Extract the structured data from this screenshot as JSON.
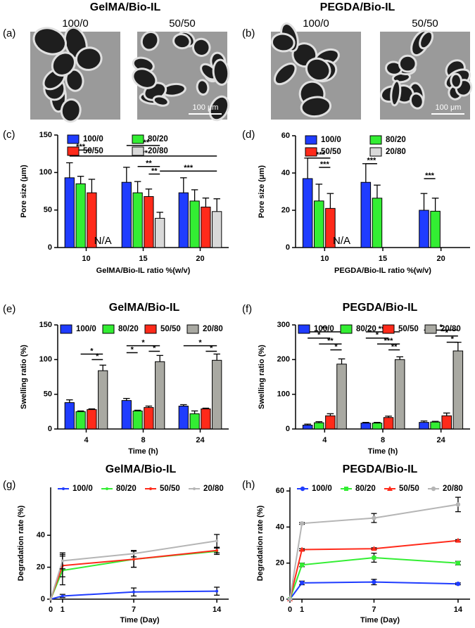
{
  "image_panels": [
    {
      "label": "(a)",
      "title": "GelMA/Bio-IL",
      "images": [
        {
          "caption": "100/0"
        },
        {
          "caption": "50/50",
          "scale_bar": "100 μm"
        }
      ]
    },
    {
      "label": "(b)",
      "title": "PEGDA/Bio-IL",
      "images": [
        {
          "caption": "100/0"
        },
        {
          "caption": "50/50",
          "scale_bar": "100 μm"
        }
      ]
    }
  ],
  "chart_data": [
    {
      "type": "bar",
      "panel_label": "(c)",
      "x_label": "GelMA/Bio-IL ratio %(w/v)",
      "y_label": "Pore size (μm)",
      "categories": [
        "10",
        "15",
        "20"
      ],
      "ylim": [
        0,
        150
      ],
      "yticks": [
        0,
        50,
        100,
        150
      ],
      "series": [
        {
          "name": "100/0",
          "color": "#1f3cff",
          "values": [
            93,
            87,
            73
          ],
          "errors": [
            20,
            20,
            20
          ]
        },
        {
          "name": "80/20",
          "color": "#33ee33",
          "values": [
            85,
            73,
            62
          ],
          "errors": [
            10,
            15,
            15
          ]
        },
        {
          "name": "50/50",
          "color": "#ff2a1a",
          "values": [
            73,
            68,
            54
          ],
          "errors": [
            18,
            10,
            12
          ]
        },
        {
          "name": "20/80",
          "color": "#d9d9d9",
          "values": [
            null,
            39,
            48
          ],
          "errors": [
            null,
            8,
            17
          ]
        }
      ],
      "na_labels": [
        {
          "text": "N/A",
          "category": 0
        }
      ],
      "annotations": [
        {
          "text": "***",
          "from": [
            0,
            0
          ],
          "to": [
            0,
            2
          ],
          "y": 130
        },
        {
          "text": "****",
          "from": [
            1,
            0
          ],
          "to": [
            1,
            3
          ],
          "y": 136
        },
        {
          "text": "***",
          "from": [
            0,
            0
          ],
          "to": [
            2,
            3
          ],
          "y": 122
        },
        {
          "text": "**",
          "from": [
            1,
            1
          ],
          "to": [
            1,
            3
          ],
          "y": 108
        },
        {
          "text": "**",
          "from": [
            1,
            2
          ],
          "to": [
            1,
            3
          ],
          "y": 98
        },
        {
          "text": "***",
          "from": [
            1,
            3
          ],
          "to": [
            2,
            3
          ],
          "y": 102
        }
      ]
    },
    {
      "type": "bar",
      "panel_label": "(d)",
      "x_label": "PEGDA/Bio-IL ratio %(w/v)",
      "y_label": "Pore size (μm)",
      "categories": [
        "10",
        "15",
        "20"
      ],
      "ylim": [
        0,
        60
      ],
      "yticks": [
        0,
        20,
        40,
        60
      ],
      "series": [
        {
          "name": "100/0",
          "color": "#1f3cff",
          "values": [
            37,
            35,
            20
          ],
          "errors": [
            11,
            10,
            9
          ]
        },
        {
          "name": "80/20",
          "color": "#33ee33",
          "values": [
            25,
            26.5,
            19.5
          ],
          "errors": [
            9,
            7,
            7
          ]
        },
        {
          "name": "50/50",
          "color": "#ff2a1a",
          "values": [
            21,
            null,
            null
          ],
          "errors": [
            8,
            null,
            null
          ]
        },
        {
          "name": "20/80",
          "color": "#d9d9d9",
          "values": [
            null,
            null,
            null
          ],
          "errors": [
            null,
            null,
            null
          ]
        }
      ],
      "na_labels": [
        {
          "text": "N/A",
          "category": 0
        }
      ],
      "annotations": [
        {
          "text": "****",
          "from": [
            0,
            0
          ],
          "to": [
            0,
            2
          ],
          "y": 48
        },
        {
          "text": "***",
          "from": [
            0,
            1
          ],
          "to": [
            0,
            2
          ],
          "y": 43
        },
        {
          "text": "***",
          "from": [
            1,
            0
          ],
          "to": [
            1,
            1
          ],
          "y": 45
        },
        {
          "text": "***",
          "from": [
            2,
            0
          ],
          "to": [
            2,
            1
          ],
          "y": 37
        }
      ]
    },
    {
      "type": "bar",
      "panel_label": "(e)",
      "title": "GelMA/Bio-IL",
      "x_label": "Time (h)",
      "y_label": "Swelling ratio (%)",
      "categories": [
        "4",
        "8",
        "24"
      ],
      "ylim": [
        0,
        150
      ],
      "yticks": [
        0,
        50,
        100,
        150
      ],
      "series": [
        {
          "name": "100/0",
          "color": "#1f3cff",
          "values": [
            38,
            41,
            33
          ],
          "errors": [
            4,
            3,
            2
          ]
        },
        {
          "name": "80/20",
          "color": "#33ee33",
          "values": [
            25,
            26,
            22
          ],
          "errors": [
            1,
            1,
            4
          ]
        },
        {
          "name": "50/50",
          "color": "#ff2a1a",
          "values": [
            28,
            31,
            29
          ],
          "errors": [
            1,
            2,
            1
          ]
        },
        {
          "name": "20/80",
          "color": "#a9a9a2",
          "values": [
            84,
            97,
            99
          ],
          "errors": [
            8,
            9,
            9
          ]
        }
      ],
      "annotations": [
        {
          "text": "*",
          "from": [
            0,
            1
          ],
          "to": [
            0,
            3
          ],
          "y": 108
        },
        {
          "text": "*",
          "from": [
            0,
            2
          ],
          "to": [
            0,
            3
          ],
          "y": 100
        },
        {
          "text": "*",
          "from": [
            1,
            0
          ],
          "to": [
            1,
            3
          ],
          "y": 120
        },
        {
          "text": "*",
          "from": [
            1,
            0
          ],
          "to": [
            1,
            1
          ],
          "y": 110
        },
        {
          "text": "*",
          "from": [
            1,
            2
          ],
          "to": [
            1,
            3
          ],
          "y": 112
        },
        {
          "text": "*",
          "from": [
            2,
            0
          ],
          "to": [
            2,
            3
          ],
          "y": 120
        },
        {
          "text": "*",
          "from": [
            2,
            2
          ],
          "to": [
            2,
            3
          ],
          "y": 112
        }
      ]
    },
    {
      "type": "bar",
      "panel_label": "(f)",
      "title": "PEGDA/Bio-IL",
      "x_label": "Time (h)",
      "y_label": "Swelling ratio (%)",
      "categories": [
        "4",
        "8",
        "24"
      ],
      "ylim": [
        0,
        300
      ],
      "yticks": [
        0,
        100,
        200,
        300
      ],
      "series": [
        {
          "name": "100/0",
          "color": "#1f3cff",
          "values": [
            11,
            17,
            19
          ],
          "errors": [
            3,
            2,
            4
          ]
        },
        {
          "name": "80/20",
          "color": "#33ee33",
          "values": [
            18,
            17,
            20
          ],
          "errors": [
            3,
            2,
            2
          ]
        },
        {
          "name": "50/50",
          "color": "#ff2a1a",
          "values": [
            38,
            33,
            38
          ],
          "errors": [
            6,
            4,
            8
          ]
        },
        {
          "name": "20/80",
          "color": "#a9a9a2",
          "values": [
            187,
            200,
            225
          ],
          "errors": [
            15,
            8,
            25
          ]
        }
      ],
      "annotations": [
        {
          "text": "**",
          "from": [
            0,
            0
          ],
          "to": [
            0,
            3
          ],
          "y": 280
        },
        {
          "text": "*",
          "from": [
            0,
            0
          ],
          "to": [
            0,
            2
          ],
          "y": 262
        },
        {
          "text": "**",
          "from": [
            0,
            1
          ],
          "to": [
            0,
            3
          ],
          "y": 245
        },
        {
          "text": "*",
          "from": [
            0,
            2
          ],
          "to": [
            0,
            3
          ],
          "y": 228
        },
        {
          "text": "***",
          "from": [
            1,
            0
          ],
          "to": [
            1,
            3
          ],
          "y": 280
        },
        {
          "text": "*",
          "from": [
            1,
            0
          ],
          "to": [
            1,
            2
          ],
          "y": 262
        },
        {
          "text": "***",
          "from": [
            1,
            1
          ],
          "to": [
            1,
            3
          ],
          "y": 245
        },
        {
          "text": "**",
          "from": [
            1,
            2
          ],
          "to": [
            1,
            3
          ],
          "y": 228
        },
        {
          "text": "*",
          "from": [
            2,
            0
          ],
          "to": [
            2,
            3
          ],
          "y": 285
        },
        {
          "text": "*",
          "from": [
            2,
            1
          ],
          "to": [
            2,
            3
          ],
          "y": 268
        },
        {
          "text": "*",
          "from": [
            2,
            2
          ],
          "to": [
            2,
            3
          ],
          "y": 250
        }
      ]
    },
    {
      "type": "line",
      "panel_label": "(g)",
      "title": "GelMA/Bio-IL",
      "x_label": "Time (Day)",
      "y_label": "Degradation rate (%)",
      "x": [
        0,
        1,
        7,
        14
      ],
      "xlim": [
        0,
        15
      ],
      "xticks": [
        0,
        1,
        7,
        14
      ],
      "ylim": [
        0,
        70
      ],
      "yticks": [
        0,
        20,
        40
      ],
      "series": [
        {
          "name": "100/0",
          "color": "#1f3cff",
          "values": [
            0,
            2,
            4.5,
            5
          ],
          "errors": [
            0,
            1,
            2.5,
            2.5
          ]
        },
        {
          "name": "80/20",
          "color": "#33ee33",
          "values": [
            0,
            18,
            25,
            30
          ],
          "errors": [
            0,
            9,
            5,
            2
          ]
        },
        {
          "name": "50/50",
          "color": "#ff2a1a",
          "values": [
            0,
            21,
            25,
            30.5
          ],
          "errors": [
            0,
            7,
            5,
            1.5
          ]
        },
        {
          "name": "20/80",
          "color": "#b5b5b5",
          "values": [
            0,
            24,
            28.5,
            36.5
          ],
          "errors": [
            0,
            5,
            2,
            4
          ]
        }
      ]
    },
    {
      "type": "line",
      "panel_label": "(h)",
      "title": "PEGDA/Bio-IL",
      "x_label": "Time (Day)",
      "y_label": "Degradation rate (%)",
      "x": [
        0,
        1,
        7,
        14
      ],
      "xlim": [
        0,
        15
      ],
      "xticks": [
        0,
        1,
        7,
        14
      ],
      "ylim": [
        0,
        62
      ],
      "yticks": [
        0,
        20,
        40,
        60
      ],
      "series": [
        {
          "name": "100/0",
          "color": "#1f3cff",
          "marker": "circle",
          "values": [
            0,
            9,
            9.5,
            8.5
          ],
          "errors": [
            0,
            1,
            1.5,
            0.5
          ]
        },
        {
          "name": "80/20",
          "color": "#33ee33",
          "marker": "square",
          "values": [
            0,
            19,
            23,
            20
          ],
          "errors": [
            0,
            1,
            2.5,
            1
          ]
        },
        {
          "name": "50/50",
          "color": "#ff2a1a",
          "marker": "triangle",
          "values": [
            0,
            27.5,
            28,
            32.5
          ],
          "errors": [
            0,
            0.5,
            0.5,
            0.5
          ]
        },
        {
          "name": "20/80",
          "color": "#b5b5b5",
          "marker": "circle",
          "values": [
            0,
            42,
            45,
            52.5
          ],
          "errors": [
            0,
            0.5,
            2.5,
            4
          ]
        }
      ]
    }
  ]
}
